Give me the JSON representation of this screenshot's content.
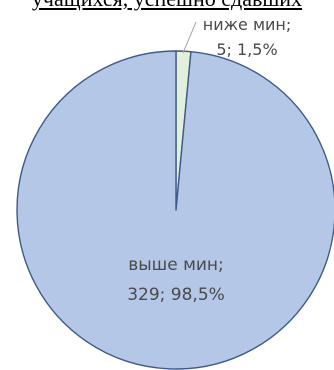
{
  "title": "учащихся, успешно сдавших",
  "chart_data": {
    "type": "pie",
    "slices": [
      {
        "name": "выше мин;",
        "value": 329,
        "percent": "98,5%",
        "label": "329; 98,5%",
        "color": "#b4c7e7"
      },
      {
        "name": "ниже мин;",
        "value": 5,
        "percent": "1,5%",
        "label": "5; 1,5%",
        "color": "#e2f0d9"
      }
    ],
    "edge_color": "#3d5a8a",
    "label_color": "#4a4a4a",
    "leader_line_color": "#a6a6a6"
  }
}
